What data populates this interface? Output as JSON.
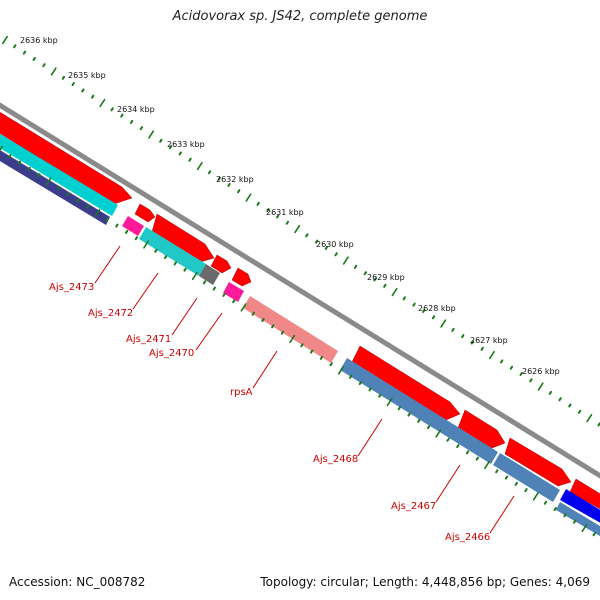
{
  "title": "Acidovorax sp. JS42, complete genome",
  "footer": {
    "accession": "Accession: NC_008782",
    "topology": "Topology: circular; Length: 4,448,856 bp; Genes: 4,069"
  },
  "kbp_labels": [
    "2636 kbp",
    "2635 kbp",
    "2634 kbp",
    "2633 kbp",
    "2632 kbp",
    "2631 kbp",
    "2630 kbp",
    "2629 kbp",
    "2628 kbp",
    "2627 kbp",
    "2626 kbp"
  ],
  "gene_labels": [
    "Ajs_2473",
    "Ajs_2472",
    "Ajs_2471",
    "Ajs_2470",
    "rpsA",
    "Ajs_2468",
    "Ajs_2467",
    "Ajs_2466"
  ],
  "colors": {
    "backbone": "#808080",
    "forward_gene": "#ff0000",
    "reverse_gene": "#ff0000",
    "cyan_feature": "#00cccc",
    "pink_feature": "#ff1493",
    "salmon_feature": "#f08080",
    "steelblue_feature": "#4a7fb5",
    "navy_feature": "#3a3a8a",
    "blue_feature": "#0000ee",
    "grey_feature": "#666666",
    "tick": "#1a7a1a",
    "label": "#cc0000"
  }
}
